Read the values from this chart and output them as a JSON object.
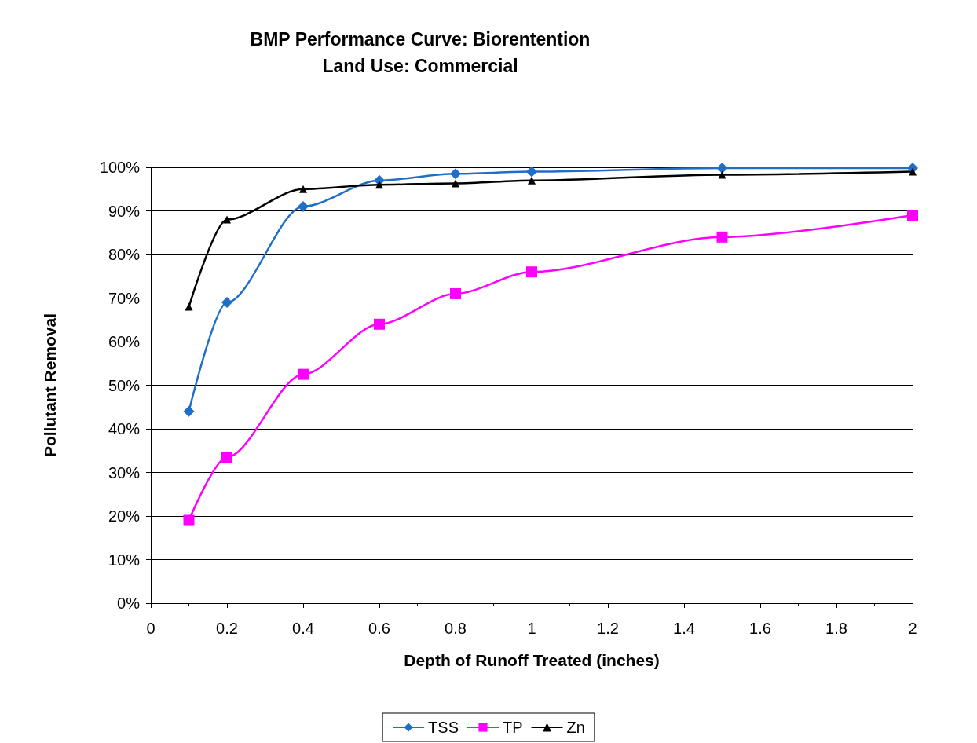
{
  "chart_data": {
    "type": "line",
    "title": "BMP Performance Curve: Biorentention\nLand Use: Commercial",
    "xlabel": "Depth of Runoff Treated (inches)",
    "ylabel": "Pollutant Removal",
    "x": [
      0.1,
      0.2,
      0.4,
      0.6,
      0.8,
      1,
      1.5,
      2
    ],
    "series": [
      {
        "name": "TSS",
        "color": "#1f6fc6",
        "marker": "diamond",
        "values": [
          44,
          69,
          91,
          97,
          98.5,
          99,
          99.8,
          99.8
        ]
      },
      {
        "name": "TP",
        "color": "#ff00ff",
        "marker": "square",
        "values": [
          19,
          33.5,
          52.5,
          64,
          71,
          76,
          84,
          89
        ]
      },
      {
        "name": "Zn",
        "color": "#000000",
        "marker": "triangle",
        "values": [
          68,
          88,
          95,
          96,
          96.3,
          97,
          98.3,
          99
        ]
      }
    ],
    "xlim": [
      0,
      2
    ],
    "xticks": [
      0,
      0.2,
      0.4,
      0.6,
      0.8,
      1,
      1.2,
      1.4,
      1.6,
      1.8,
      2
    ],
    "ylim": [
      0,
      100
    ],
    "yticks": [
      {
        "value": 0,
        "label": "0%"
      },
      {
        "value": 10,
        "label": "10%"
      },
      {
        "value": 20,
        "label": "20%"
      },
      {
        "value": 30,
        "label": "30%"
      },
      {
        "value": 40,
        "label": "40%"
      },
      {
        "value": 50,
        "label": "50%"
      },
      {
        "value": 60,
        "label": "60%"
      },
      {
        "value": 70,
        "label": "70%"
      },
      {
        "value": 80,
        "label": "80%"
      },
      {
        "value": 90,
        "label": "90%"
      },
      {
        "value": 100,
        "label": "100%"
      }
    ],
    "grid": "y",
    "legend": "bottom",
    "line_style": "solid"
  }
}
